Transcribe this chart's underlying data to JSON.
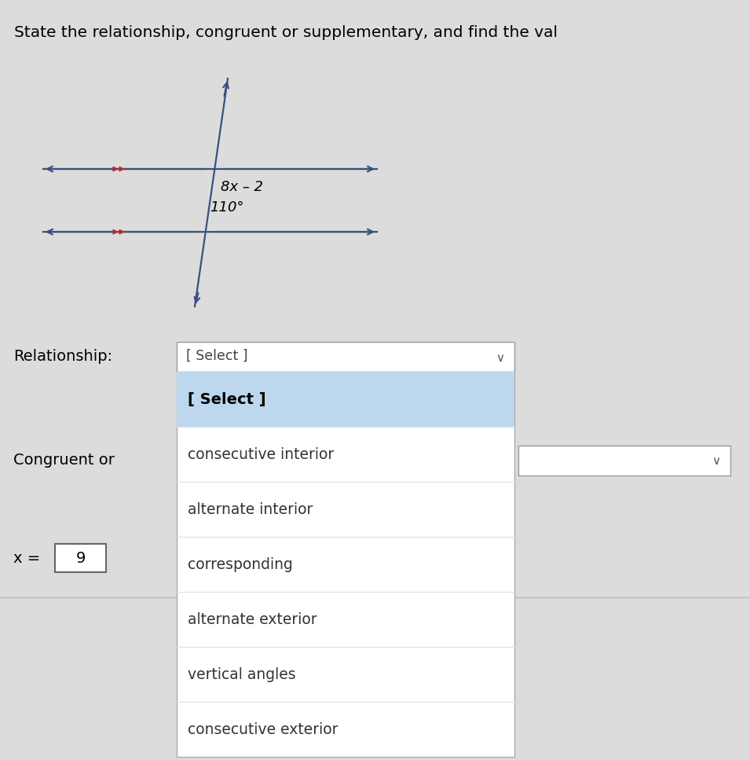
{
  "title": "State the relationship, congruent or supplementary, and find the val",
  "title_fontsize": 14.5,
  "bg_color": "#dcdcdc",
  "line_color": "#3a5080",
  "arrow_color": "#cc2222",
  "angle1_label": "8x – 2",
  "angle2_label": "110°",
  "relationship_label": "Relationship:",
  "select_box_text": "[ Select ]",
  "dropdown_items": [
    "[ Select ]",
    "consecutive interior",
    "alternate interior",
    "corresponding",
    "alternate exterior",
    "vertical angles",
    "consecutive exterior"
  ],
  "congruent_or_label": "Congruent or",
  "x_eq_label": "x =",
  "x_val": "9",
  "select_highlight_color": "#bdd7ee",
  "dropdown_border_color": "#aaaaaa",
  "white": "#ffffff",
  "text_color": "#222222",
  "chevron_color": "#555555"
}
